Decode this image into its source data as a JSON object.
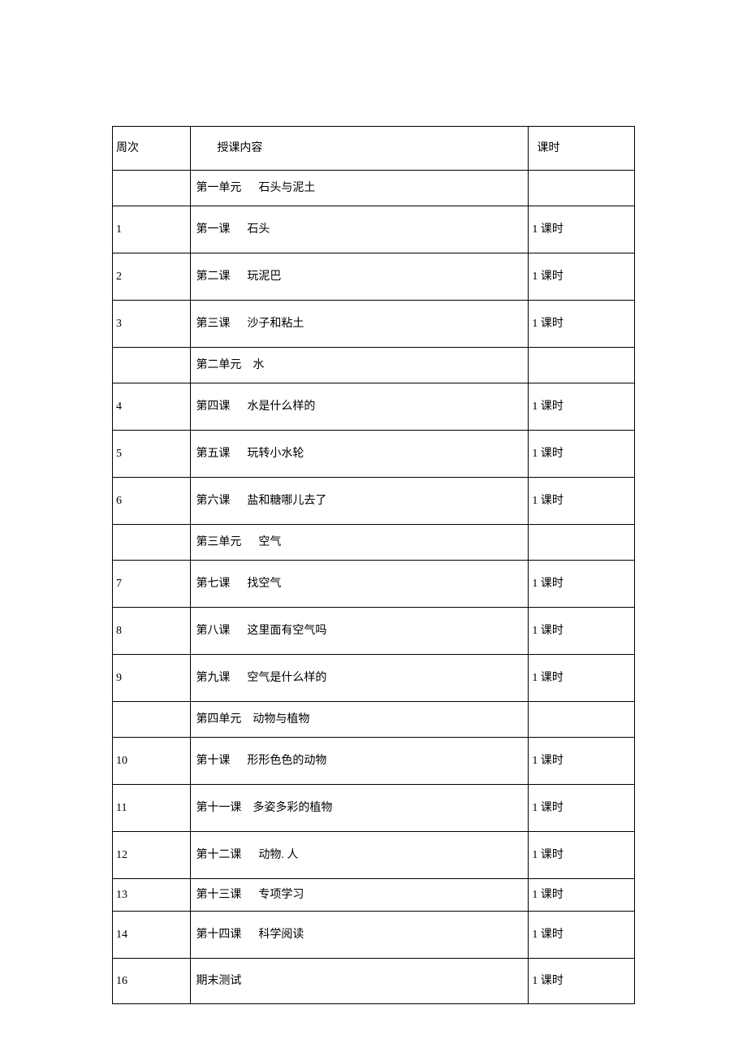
{
  "table": {
    "columns": {
      "week": "周次",
      "content": "授课内容",
      "hours": "课时"
    },
    "rows": [
      {
        "type": "unit",
        "week": "",
        "content": "第一单元      石头与泥土",
        "hours": ""
      },
      {
        "type": "lesson",
        "week": "1",
        "content": "第一课      石头",
        "hours": "1 课时"
      },
      {
        "type": "lesson",
        "week": "2",
        "content": "第二课      玩泥巴",
        "hours": "1 课时"
      },
      {
        "type": "lesson",
        "week": "3",
        "content": "第三课      沙子和粘土",
        "hours": "1 课时"
      },
      {
        "type": "unit",
        "week": "",
        "content": "第二单元    水",
        "hours": ""
      },
      {
        "type": "lesson",
        "week": "4",
        "content": "第四课      水是什么样的",
        "hours": "1 课时"
      },
      {
        "type": "lesson",
        "week": "5",
        "content": "第五课      玩转小水轮",
        "hours": "1 课时"
      },
      {
        "type": "lesson",
        "week": "6",
        "content": "第六课      盐和糖哪儿去了",
        "hours": "1 课时"
      },
      {
        "type": "unit",
        "week": "",
        "content": "第三单元      空气",
        "hours": ""
      },
      {
        "type": "lesson",
        "week": "7",
        "content": "第七课      找空气",
        "hours": "1 课时"
      },
      {
        "type": "lesson",
        "week": "8",
        "content": "第八课      这里面有空气吗",
        "hours": "1 课时"
      },
      {
        "type": "lesson",
        "week": "9",
        "content": "第九课      空气是什么样的",
        "hours": "1 课时"
      },
      {
        "type": "unit",
        "week": "",
        "content": "第四单元    动物与植物",
        "hours": ""
      },
      {
        "type": "lesson",
        "week": "10",
        "content": "第十课      形形色色的动物",
        "hours": "1 课时"
      },
      {
        "type": "lesson",
        "week": "11",
        "content": "第十一课    多姿多彩的植物",
        "hours": "1 课时"
      },
      {
        "type": "lesson",
        "week": "12",
        "content": "第十二课      动物. 人",
        "hours": "1 课时"
      },
      {
        "type": "lesson-short",
        "week": "13",
        "content": "第十三课      专项学习",
        "hours": "1 课时"
      },
      {
        "type": "lesson",
        "week": "14",
        "content": "第十四课      科学阅读",
        "hours": "1 课时"
      },
      {
        "type": "lesson-last",
        "week": "16",
        "content": "期末测试",
        "hours": "1 课时"
      }
    ],
    "styling": {
      "border_color": "#000000",
      "background_color": "#ffffff",
      "text_color": "#000000",
      "font_size": 14,
      "font_family": "SimSun",
      "col_widths": {
        "week": 96,
        "content": 414,
        "hours": 130
      },
      "row_heights": {
        "header": 54,
        "unit": 44,
        "lesson": 58,
        "lesson_short": 40,
        "lesson_last": 56
      }
    }
  }
}
